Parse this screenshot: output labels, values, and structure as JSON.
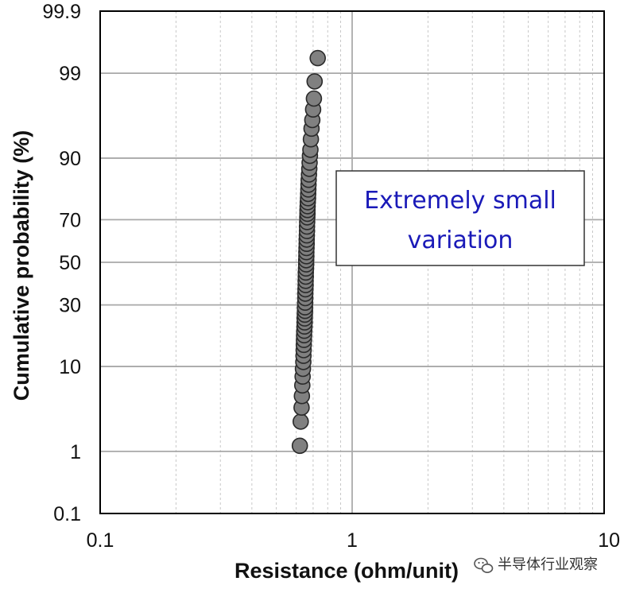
{
  "chart_data": {
    "type": "scatter",
    "title": "",
    "xlabel": "Resistance (ohm/unit)",
    "ylabel": "Cumulative probability (%)",
    "x_scale": "log",
    "y_scale": "probability",
    "xlim": [
      0.1,
      10
    ],
    "ylim": [
      0.1,
      99.9
    ],
    "x_ticks": [
      0.1,
      1,
      10
    ],
    "x_tick_labels": [
      "0.1",
      "1",
      "10"
    ],
    "y_ticks": [
      0.1,
      1,
      10,
      30,
      50,
      70,
      90,
      99,
      99.9
    ],
    "y_tick_labels": [
      "0.1",
      "1",
      "10",
      "30",
      "50",
      "70",
      "90",
      "99",
      "99.9"
    ],
    "grid": true,
    "marker_color": "#808080",
    "marker_edge_color": "#2a2a2a",
    "series": [
      {
        "x": [
          0.62,
          0.625,
          0.63,
          0.632,
          0.634,
          0.636,
          0.638,
          0.64,
          0.641,
          0.642,
          0.643,
          0.644,
          0.645,
          0.646,
          0.647,
          0.648,
          0.648,
          0.649,
          0.65,
          0.65,
          0.651,
          0.652,
          0.652,
          0.653,
          0.654,
          0.654,
          0.655,
          0.655,
          0.656,
          0.657,
          0.657,
          0.658,
          0.658,
          0.659,
          0.66,
          0.66,
          0.661,
          0.662,
          0.662,
          0.663,
          0.664,
          0.665,
          0.665,
          0.666,
          0.667,
          0.668,
          0.669,
          0.67,
          0.671,
          0.672,
          0.674,
          0.676,
          0.678,
          0.68,
          0.683,
          0.686,
          0.69,
          0.695,
          0.7,
          0.705,
          0.71,
          0.73
        ],
        "y": [
          1.2,
          2.5,
          3.7,
          5.0,
          6.5,
          8.0,
          9.5,
          11,
          12.5,
          14,
          15.5,
          17,
          18.5,
          20,
          21.5,
          23,
          24.5,
          26,
          27.5,
          29,
          31,
          33,
          35,
          37,
          39,
          41,
          43,
          45,
          47,
          49,
          51,
          53,
          55,
          57,
          59,
          61,
          63,
          65,
          67,
          69,
          71,
          72.5,
          74,
          75.5,
          77,
          78.5,
          80,
          81.5,
          83,
          84.5,
          86,
          87.5,
          89,
          90.5,
          91.7,
          93.5,
          95,
          96,
          97,
          97.8,
          98.7,
          99.4
        ]
      }
    ],
    "annotations": [
      {
        "lines": [
          "Extremely small",
          "variation"
        ],
        "color": "#1a1ab8"
      }
    ]
  },
  "watermark": {
    "text": "半导体行业观察",
    "icon": "wechat-icon"
  }
}
